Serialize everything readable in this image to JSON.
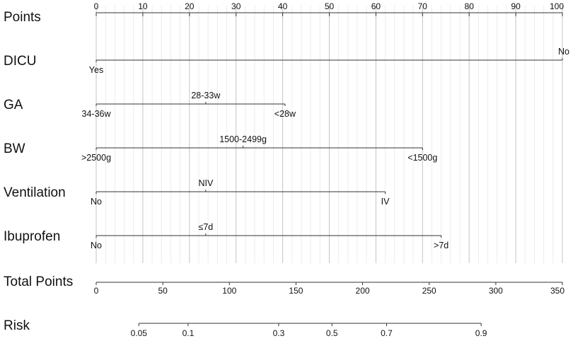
{
  "chart_data": {
    "type": "nomogram",
    "points_scale": {
      "label": "Points",
      "range": [
        0,
        100
      ],
      "ticks": [
        0,
        10,
        20,
        30,
        40,
        50,
        60,
        70,
        80,
        90,
        100
      ],
      "tick_labels": [
        "0",
        "10",
        "20",
        "30",
        "40",
        "50",
        "60",
        "70",
        "80",
        "90",
        "100"
      ]
    },
    "predictors": [
      {
        "label": "DICU",
        "line_range": [
          0,
          100
        ],
        "categories": [
          {
            "text": "Yes",
            "points": 0,
            "position": "below"
          },
          {
            "text": "No",
            "points": 100,
            "position": "above"
          }
        ]
      },
      {
        "label": "GA",
        "line_range": [
          0,
          40.5
        ],
        "categories": [
          {
            "text": "34-36w",
            "points": 0,
            "position": "below"
          },
          {
            "text": "28-33w",
            "points": 23.5,
            "position": "above"
          },
          {
            "text": "<28w",
            "points": 40.5,
            "position": "below"
          }
        ]
      },
      {
        "label": "BW",
        "line_range": [
          0,
          70
        ],
        "categories": [
          {
            "text": ">2500g",
            "points": 0,
            "position": "below"
          },
          {
            "text": "1500-2499g",
            "points": 31.5,
            "position": "above"
          },
          {
            "text": "<1500g",
            "points": 70,
            "position": "below"
          }
        ]
      },
      {
        "label": "Ventilation",
        "line_range": [
          0,
          62
        ],
        "categories": [
          {
            "text": "No",
            "points": 0,
            "position": "below"
          },
          {
            "text": "NIV",
            "points": 23.5,
            "position": "above"
          },
          {
            "text": "IV",
            "points": 62,
            "position": "below"
          }
        ]
      },
      {
        "label": "Ibuprofen",
        "line_range": [
          0,
          74
        ],
        "categories": [
          {
            "text": "No",
            "points": 0,
            "position": "below"
          },
          {
            "text": "≤7d",
            "points": 23.5,
            "position": "above"
          },
          {
            "text": ">7d",
            "points": 74,
            "position": "below"
          }
        ]
      }
    ],
    "total_points": {
      "label": "Total Points",
      "range": [
        0,
        350
      ],
      "ticks": [
        0,
        50,
        100,
        150,
        200,
        250,
        300,
        350
      ],
      "tick_labels": [
        "0",
        "50",
        "100",
        "150",
        "200",
        "250",
        "300",
        "350"
      ]
    },
    "risk": {
      "label": "Risk",
      "ticks": [
        {
          "value": 0.05,
          "text": "0.05",
          "total_points": 32
        },
        {
          "value": 0.1,
          "text": "0.1",
          "total_points": 69
        },
        {
          "value": 0.3,
          "text": "0.3",
          "total_points": 137
        },
        {
          "value": 0.5,
          "text": "0.5",
          "total_points": 177
        },
        {
          "value": 0.7,
          "text": "0.7",
          "total_points": 218
        },
        {
          "value": 0.9,
          "text": "0.9",
          "total_points": 289
        }
      ]
    },
    "grid": true
  }
}
